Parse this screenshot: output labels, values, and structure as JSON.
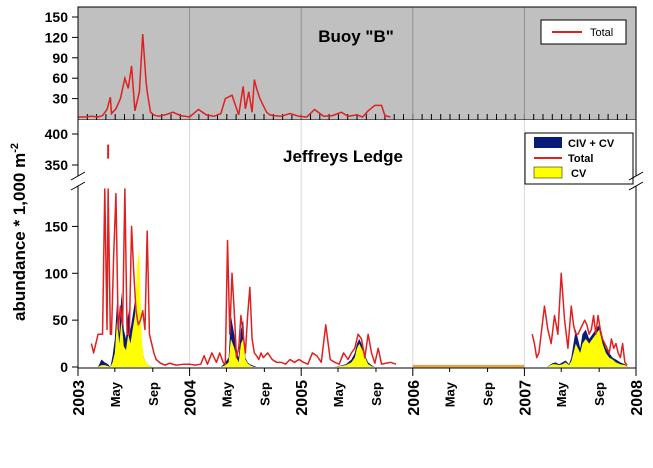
{
  "colors": {
    "top_panel_bg": "#c0c0c0",
    "total_line": "#e02020",
    "civ_cv_fill": "#0a1a7a",
    "cv_fill": "#ffff00",
    "gap_line": "#e8a23a",
    "frame": "#000000",
    "year_grid": "#909090"
  },
  "chart_data": [
    {
      "type": "line",
      "panel": "top",
      "title": "Buoy \"B\"",
      "ylim": [
        0,
        160
      ],
      "yticks": [
        30,
        60,
        90,
        120,
        150
      ],
      "grid": false,
      "legend_position": "top-right",
      "legend": [
        {
          "label": "Total",
          "symbol": "line"
        }
      ],
      "series": [
        {
          "name": "Total",
          "x": [
            2003.0,
            2003.06,
            2003.12,
            2003.18,
            2003.22,
            2003.26,
            2003.29,
            2003.3,
            2003.34,
            2003.38,
            2003.42,
            2003.45,
            2003.48,
            2003.51,
            2003.55,
            2003.58,
            2003.61,
            2003.62,
            2003.65,
            2003.68,
            2003.72,
            2003.78,
            2003.85,
            2003.92,
            2004.0,
            2004.08,
            2004.15,
            2004.22,
            2004.28,
            2004.32,
            2004.38,
            2004.44,
            2004.48,
            2004.5,
            2004.53,
            2004.56,
            2004.58,
            2004.6,
            2004.63,
            2004.66,
            2004.69,
            2004.72,
            2004.76,
            2004.82,
            2004.9,
            2004.98,
            2005.05,
            2005.12,
            2005.2,
            2005.28,
            2005.36,
            2005.42,
            2005.5,
            2005.55,
            2005.6,
            2005.66,
            2005.72,
            2005.75,
            2005.8
          ],
          "y": [
            3,
            3,
            4,
            3,
            5,
            14,
            32,
            8,
            15,
            30,
            60,
            45,
            78,
            12,
            40,
            125,
            55,
            40,
            10,
            6,
            4,
            6,
            10,
            5,
            3,
            14,
            6,
            4,
            8,
            30,
            35,
            6,
            48,
            15,
            40,
            10,
            58,
            45,
            30,
            20,
            10,
            6,
            5,
            4,
            8,
            4,
            3,
            14,
            4,
            5,
            10,
            4,
            6,
            3,
            12,
            20,
            20,
            5,
            3
          ]
        }
      ]
    },
    {
      "type": "area",
      "panel": "bottom",
      "title": "Jeffreys Ledge",
      "ylabel": "abundance * 1,000 m",
      "ylabel_sup": "-2",
      "xlim": [
        2003,
        2008
      ],
      "ylim_lower": [
        0,
        190
      ],
      "ylim_upper": [
        350,
        410
      ],
      "yticks_lower": [
        0,
        50,
        100,
        150
      ],
      "yticks_upper": [
        350,
        400
      ],
      "axis_break": true,
      "legend_position": "top-right",
      "legend": [
        {
          "label": "CIV + CV",
          "symbol": "fill"
        },
        {
          "label": "Total",
          "symbol": "line"
        },
        {
          "label": " CV",
          "symbol": "fill"
        }
      ],
      "xtick_labels": [
        {
          "x": 2003.0,
          "label": "2003",
          "major": true
        },
        {
          "x": 2003.33,
          "label": "May",
          "major": false
        },
        {
          "x": 2003.67,
          "label": "Sep",
          "major": false
        },
        {
          "x": 2004.0,
          "label": "2004",
          "major": true
        },
        {
          "x": 2004.33,
          "label": "May",
          "major": false
        },
        {
          "x": 2004.67,
          "label": "Sep",
          "major": false
        },
        {
          "x": 2005.0,
          "label": "2005",
          "major": true
        },
        {
          "x": 2005.33,
          "label": "May",
          "major": false
        },
        {
          "x": 2005.67,
          "label": "Sep",
          "major": false
        },
        {
          "x": 2006.0,
          "label": "2006",
          "major": true
        },
        {
          "x": 2006.33,
          "label": "May",
          "major": false
        },
        {
          "x": 2006.67,
          "label": "Sep",
          "major": false
        },
        {
          "x": 2007.0,
          "label": "2007",
          "major": true
        },
        {
          "x": 2007.33,
          "label": "May",
          "major": false
        },
        {
          "x": 2007.67,
          "label": "Sep",
          "major": false
        },
        {
          "x": 2008.0,
          "label": "2008",
          "major": true
        }
      ],
      "series": [
        {
          "name": "Total",
          "segments": [
            {
              "x": [
                2003.12,
                2003.14,
                2003.18,
                2003.22,
                2003.24,
                2003.26,
                2003.27,
                2003.29,
                2003.3,
                2003.32,
                2003.34,
                2003.36,
                2003.38,
                2003.4,
                2003.42,
                2003.44,
                2003.46,
                2003.48,
                2003.5,
                2003.52,
                2003.54,
                2003.56,
                2003.58,
                2003.6,
                2003.62,
                2003.64,
                2003.66,
                2003.68,
                2003.7,
                2003.74,
                2003.78,
                2003.82,
                2003.88,
                2003.95,
                2004.0,
                2004.05,
                2004.1,
                2004.13,
                2004.16,
                2004.2,
                2004.24,
                2004.27,
                2004.3,
                2004.32,
                2004.34,
                2004.36,
                2004.38,
                2004.4,
                2004.42,
                2004.44,
                2004.46,
                2004.48,
                2004.5,
                2004.52,
                2004.54,
                2004.56,
                2004.58,
                2004.6,
                2004.62,
                2004.64,
                2004.66,
                2004.7,
                2004.74,
                2004.78,
                2004.82,
                2004.86,
                2004.9,
                2004.94,
                2004.98,
                2005.02,
                2005.06,
                2005.1,
                2005.14,
                2005.18,
                2005.22,
                2005.26,
                2005.3,
                2005.34,
                2005.38,
                2005.42,
                2005.45,
                2005.48,
                2005.51,
                2005.54,
                2005.57,
                2005.6,
                2005.63,
                2005.66,
                2005.69,
                2005.72,
                2005.76,
                2005.8,
                2005.85
              ],
              "y": [
                25,
                15,
                35,
                35,
                190,
                40,
                190,
                35,
                35,
                120,
                185,
                40,
                65,
                45,
                190,
                35,
                35,
                150,
                100,
                60,
                45,
                50,
                60,
                40,
                145,
                35,
                25,
                15,
                8,
                4,
                2,
                4,
                2,
                3,
                3,
                2,
                3,
                12,
                3,
                15,
                5,
                15,
                5,
                3,
                135,
                35,
                100,
                60,
                10,
                20,
                55,
                35,
                15,
                55,
                85,
                30,
                15,
                12,
                8,
                15,
                10,
                15,
                8,
                5,
                5,
                3,
                8,
                5,
                8,
                5,
                3,
                15,
                12,
                5,
                45,
                8,
                5,
                3,
                15,
                8,
                15,
                20,
                35,
                30,
                10,
                35,
                15,
                4,
                20,
                3,
                4,
                5,
                3
              ]
            },
            {
              "x": [
                2007.07,
                2007.09,
                2007.11,
                2007.13,
                2007.15,
                2007.18,
                2007.21,
                2007.24,
                2007.27,
                2007.3,
                2007.33,
                2007.36,
                2007.39,
                2007.42,
                2007.44,
                2007.46,
                2007.48,
                2007.5,
                2007.52,
                2007.54,
                2007.56,
                2007.58,
                2007.6,
                2007.62,
                2007.64,
                2007.66,
                2007.68,
                2007.7,
                2007.72,
                2007.74,
                2007.76,
                2007.78,
                2007.8,
                2007.82,
                2007.84,
                2007.86,
                2007.88,
                2007.9,
                2007.92
              ],
              "y": [
                35,
                25,
                10,
                15,
                35,
                65,
                40,
                25,
                55,
                35,
                100,
                50,
                20,
                65,
                45,
                35,
                35,
                40,
                45,
                50,
                45,
                35,
                40,
                55,
                35,
                55,
                40,
                30,
                25,
                20,
                15,
                30,
                20,
                25,
                15,
                10,
                25,
                5,
                2
              ]
            }
          ]
        },
        {
          "name": "Total (2006 gap)",
          "x": [
            2006.0,
            2007.0
          ],
          "y": [
            1,
            1
          ]
        },
        {
          "name": "Total (outlier)",
          "x": [
            2003.27
          ],
          "y": [
            370
          ]
        },
        {
          "name": "CIV + CV",
          "x": [
            2003.18,
            2003.21,
            2003.24,
            2003.27,
            2003.29,
            2003.31,
            2003.33,
            2003.35,
            2003.37,
            2003.39,
            2003.41,
            2003.43,
            2003.45,
            2003.47,
            2003.49,
            2003.51,
            2003.53,
            2003.55,
            2003.57,
            2003.59,
            2003.61,
            2003.63,
            2003.65,
            2003.67,
            2003.69,
            2003.72,
            2003.76,
            2003.8,
            2004.0,
            2004.2,
            2004.28,
            2004.32,
            2004.35,
            2004.37,
            2004.4,
            2004.42,
            2004.44,
            2004.46,
            2004.48,
            2004.5,
            2004.52,
            2004.54,
            2004.56,
            2004.58,
            2004.6,
            2004.62,
            2004.64,
            2004.66,
            2004.7,
            2004.74,
            2004.8,
            2005.0,
            2005.3,
            2005.4,
            2005.45,
            2005.48,
            2005.5,
            2005.52,
            2005.54,
            2005.56,
            2005.58,
            2005.6,
            2005.63,
            2005.66,
            2005.7,
            2005.75,
            2005.8,
            2006.0,
            2007.0,
            2007.05,
            2007.1,
            2007.15,
            2007.2,
            2007.25,
            2007.28,
            2007.31,
            2007.34,
            2007.37,
            2007.4,
            2007.42,
            2007.44,
            2007.46,
            2007.48,
            2007.5,
            2007.52,
            2007.55,
            2007.58,
            2007.61,
            2007.64,
            2007.67,
            2007.7,
            2007.73,
            2007.76,
            2007.79,
            2007.82,
            2007.86,
            2007.9,
            2007.93
          ],
          "y": [
            0,
            8,
            5,
            3,
            0,
            12,
            30,
            70,
            35,
            80,
            40,
            30,
            60,
            40,
            55,
            70,
            55,
            35,
            25,
            10,
            5,
            2,
            1,
            0,
            0,
            0,
            0,
            0,
            0,
            0,
            0,
            5,
            10,
            55,
            35,
            20,
            10,
            40,
            50,
            10,
            5,
            3,
            2,
            1,
            0,
            0,
            0,
            0,
            0,
            0,
            0,
            0,
            0,
            3,
            8,
            15,
            25,
            30,
            25,
            20,
            10,
            5,
            2,
            0,
            0,
            0,
            0,
            0,
            0,
            0,
            0,
            0,
            0,
            4,
            5,
            3,
            5,
            7,
            3,
            10,
            25,
            40,
            30,
            20,
            35,
            40,
            30,
            35,
            40,
            45,
            30,
            20,
            15,
            10,
            8,
            5,
            3,
            0
          ]
        },
        {
          "name": " CV",
          "x": [
            2003.18,
            2003.21,
            2003.24,
            2003.27,
            2003.29,
            2003.31,
            2003.33,
            2003.35,
            2003.37,
            2003.39,
            2003.41,
            2003.43,
            2003.45,
            2003.47,
            2003.49,
            2003.51,
            2003.53,
            2003.55,
            2003.57,
            2003.59,
            2003.61,
            2003.63,
            2003.65,
            2003.67,
            2003.69,
            2003.72,
            2003.76,
            2003.8,
            2004.0,
            2004.2,
            2004.28,
            2004.32,
            2004.35,
            2004.37,
            2004.4,
            2004.42,
            2004.44,
            2004.46,
            2004.48,
            2004.5,
            2004.52,
            2004.54,
            2004.56,
            2004.58,
            2004.6,
            2004.62,
            2004.64,
            2004.66,
            2004.7,
            2004.74,
            2004.8,
            2005.0,
            2005.3,
            2005.4,
            2005.45,
            2005.48,
            2005.5,
            2005.52,
            2005.54,
            2005.56,
            2005.58,
            2005.6,
            2005.63,
            2005.66,
            2005.7,
            2005.75,
            2005.8,
            2006.0,
            2007.0,
            2007.05,
            2007.1,
            2007.15,
            2007.2,
            2007.25,
            2007.28,
            2007.31,
            2007.34,
            2007.37,
            2007.4,
            2007.42,
            2007.44,
            2007.46,
            2007.48,
            2007.5,
            2007.52,
            2007.55,
            2007.58,
            2007.61,
            2007.64,
            2007.67,
            2007.7,
            2007.73,
            2007.76,
            2007.79,
            2007.82,
            2007.86,
            2007.9,
            2007.93
          ],
          "y": [
            0,
            2,
            2,
            1,
            0,
            5,
            15,
            50,
            25,
            50,
            22,
            18,
            35,
            25,
            40,
            55,
            110,
            125,
            30,
            10,
            5,
            2,
            1,
            0,
            0,
            0,
            0,
            0,
            0,
            0,
            0,
            2,
            5,
            30,
            20,
            10,
            5,
            25,
            30,
            8,
            4,
            2,
            1,
            0,
            0,
            0,
            0,
            0,
            0,
            0,
            0,
            0,
            0,
            2,
            5,
            10,
            20,
            25,
            20,
            15,
            8,
            3,
            1,
            0,
            0,
            0,
            0,
            0,
            0,
            0,
            0,
            0,
            0,
            3,
            3,
            2,
            3,
            5,
            2,
            6,
            15,
            25,
            20,
            15,
            25,
            30,
            25,
            30,
            35,
            40,
            25,
            15,
            10,
            8,
            5,
            3,
            2,
            0
          ]
        }
      ]
    }
  ]
}
